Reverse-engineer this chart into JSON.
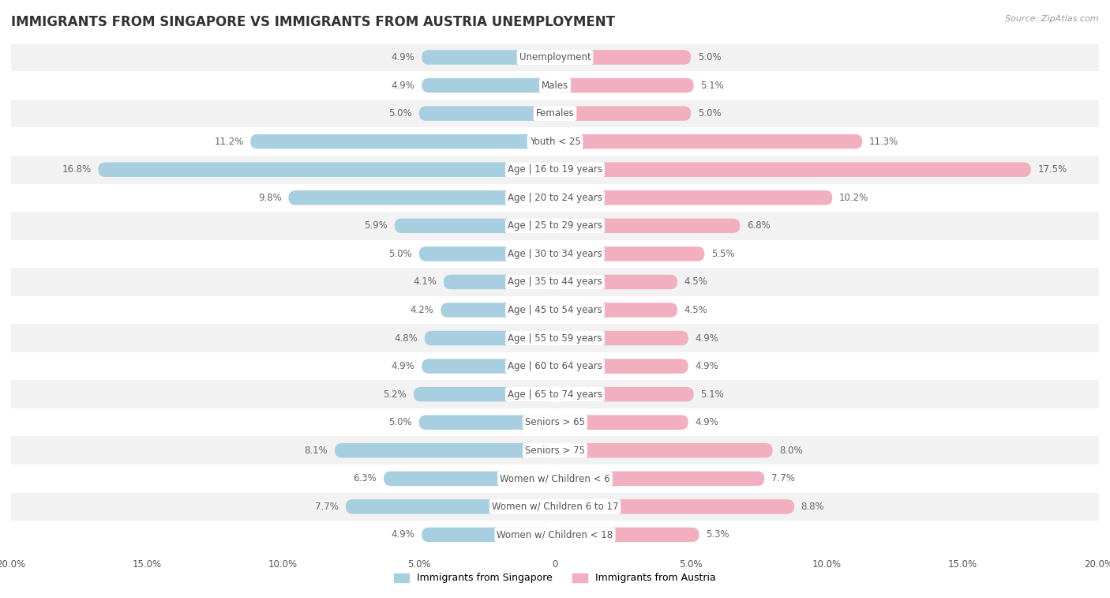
{
  "title": "IMMIGRANTS FROM SINGAPORE VS IMMIGRANTS FROM AUSTRIA UNEMPLOYMENT",
  "source": "Source: ZipAtlas.com",
  "categories": [
    "Unemployment",
    "Males",
    "Females",
    "Youth < 25",
    "Age | 16 to 19 years",
    "Age | 20 to 24 years",
    "Age | 25 to 29 years",
    "Age | 30 to 34 years",
    "Age | 35 to 44 years",
    "Age | 45 to 54 years",
    "Age | 55 to 59 years",
    "Age | 60 to 64 years",
    "Age | 65 to 74 years",
    "Seniors > 65",
    "Seniors > 75",
    "Women w/ Children < 6",
    "Women w/ Children 6 to 17",
    "Women w/ Children < 18"
  ],
  "singapore_values": [
    4.9,
    4.9,
    5.0,
    11.2,
    16.8,
    9.8,
    5.9,
    5.0,
    4.1,
    4.2,
    4.8,
    4.9,
    5.2,
    5.0,
    8.1,
    6.3,
    7.7,
    4.9
  ],
  "austria_values": [
    5.0,
    5.1,
    5.0,
    11.3,
    17.5,
    10.2,
    6.8,
    5.5,
    4.5,
    4.5,
    4.9,
    4.9,
    5.1,
    4.9,
    8.0,
    7.7,
    8.8,
    5.3
  ],
  "singapore_color": "#a8cfe0",
  "austria_color": "#f2afc0",
  "singapore_label": "Immigrants from Singapore",
  "austria_label": "Immigrants from Austria",
  "xlim": 20.0,
  "row_color_even": "#f2f2f2",
  "row_color_odd": "#ffffff",
  "fig_bg_color": "#ffffff",
  "title_fontsize": 12,
  "label_fontsize": 8.5,
  "value_fontsize": 8.5,
  "tick_fontsize": 8.5
}
